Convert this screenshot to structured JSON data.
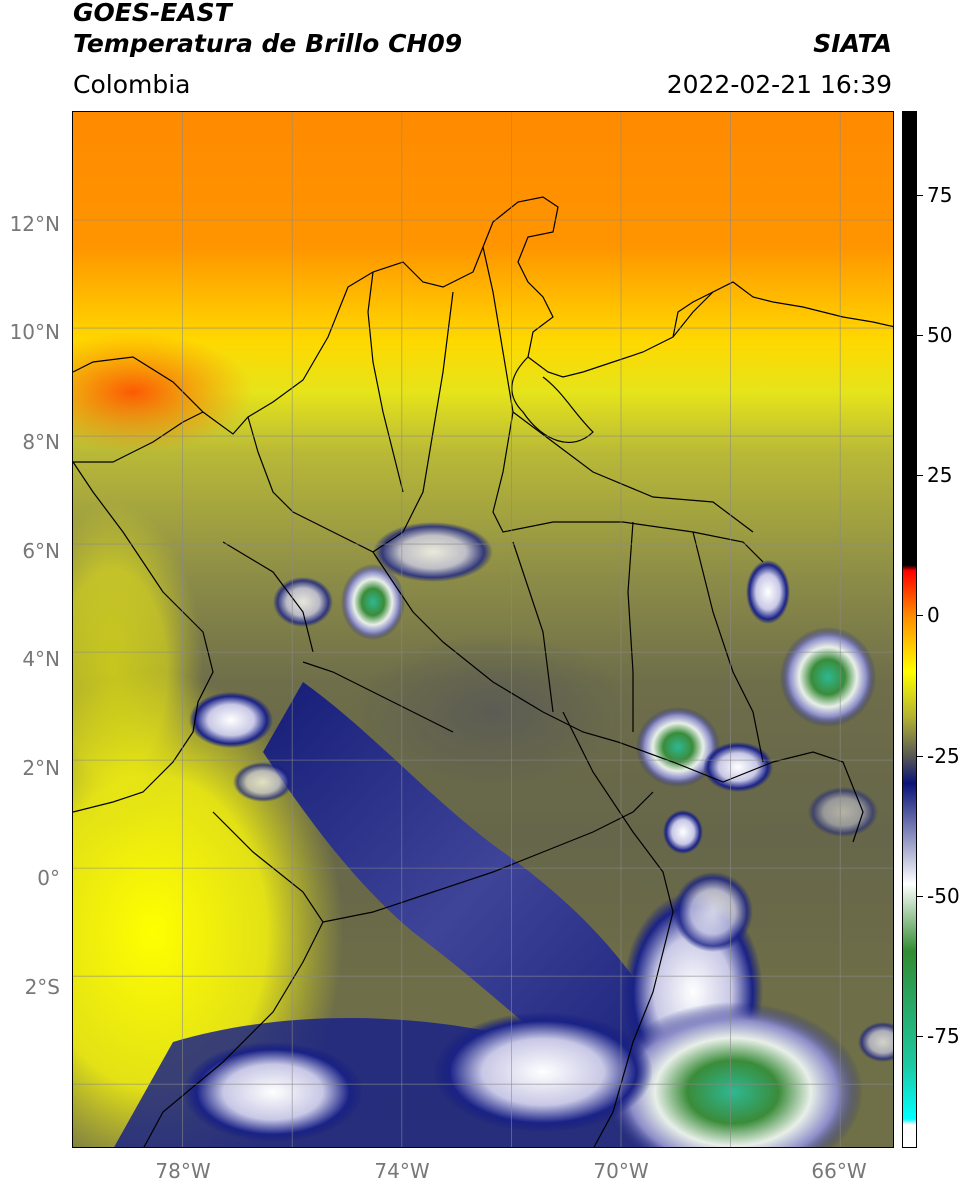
{
  "header": {
    "title_line1": "GOES-EAST",
    "title_line2": "Temperatura de Brillo CH09",
    "source": "SIATA",
    "region": "Colombia",
    "timestamp": "2022-02-21 16:39"
  },
  "map": {
    "lat_labels": [
      "12°N",
      "10°N",
      "8°N",
      "6°N",
      "4°N",
      "2°N",
      "0°",
      "2°S"
    ],
    "lon_labels": [
      "78°W",
      "74°W",
      "70°W",
      "66°W"
    ],
    "extent": {
      "lon_min": -80,
      "lon_max": -65,
      "lat_min": -5.2,
      "lat_max": 14
    },
    "gridlines": true
  },
  "colorbar": {
    "labels": [
      "75",
      "50",
      "25",
      "0",
      "-25",
      "-50",
      "-75"
    ],
    "values": [
      75,
      50,
      25,
      0,
      -25,
      -50,
      -75
    ],
    "range": [
      -95,
      90
    ],
    "colors": {
      "warm_black": "#000000",
      "red": "#ff0000",
      "orange": "#ff8c00",
      "yellow": "#ffff00",
      "olive": "#b4b432",
      "gray": "#5a5a55",
      "navy": "#0a1478",
      "white": "#ffffff",
      "green": "#328c32",
      "teal": "#1ec8a0",
      "cyan": "#00ffff"
    }
  }
}
